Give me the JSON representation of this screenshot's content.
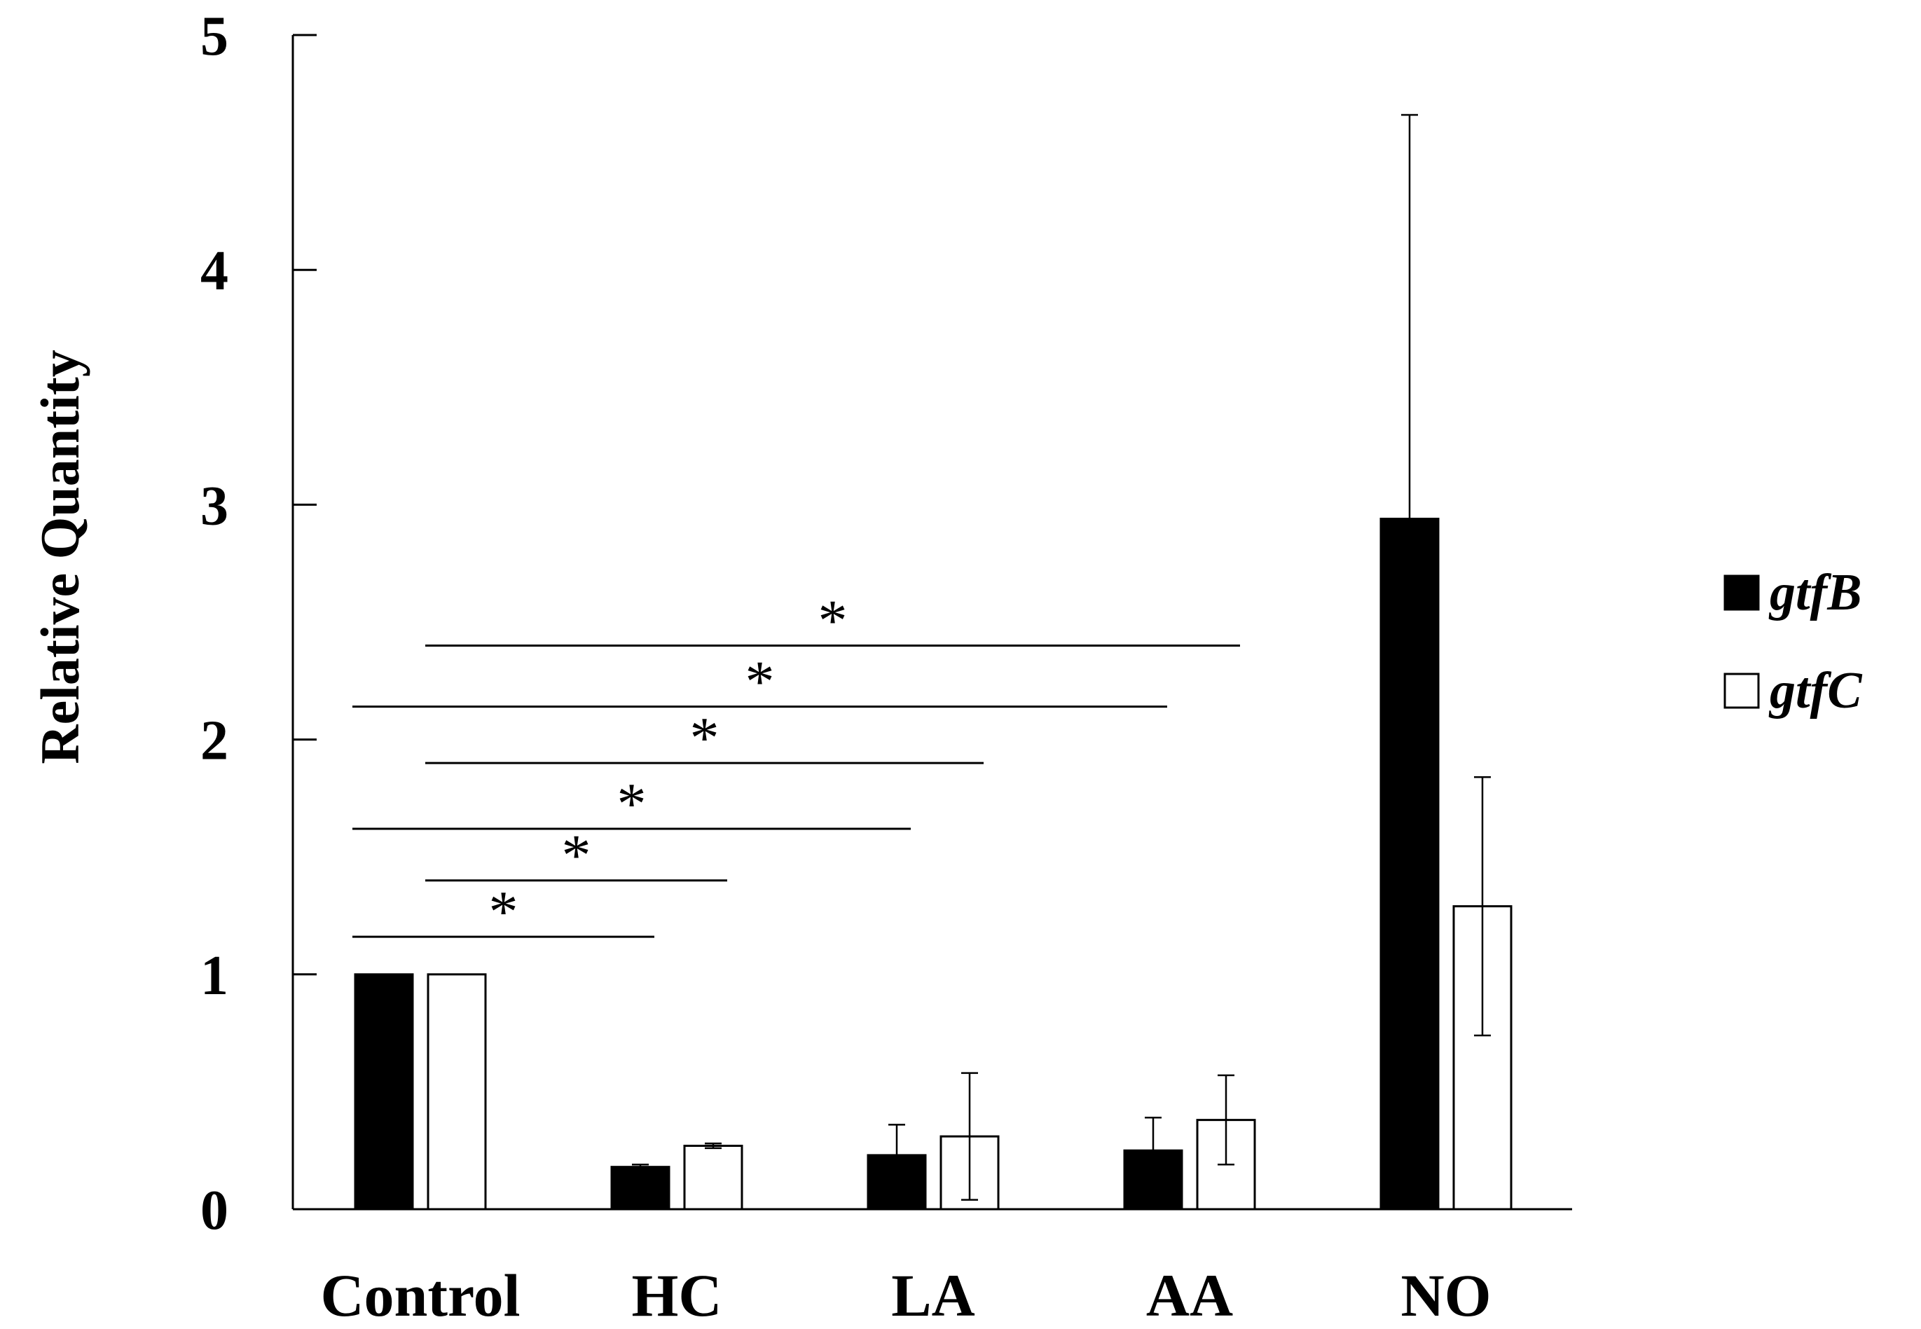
{
  "chart_data": {
    "type": "bar",
    "title": "",
    "xlabel": "",
    "ylabel": "Relative Quantity",
    "ylim": [
      0,
      5
    ],
    "yticks": [
      0,
      1,
      2,
      3,
      4,
      5
    ],
    "categories": [
      "Control",
      "HC",
      "LA",
      "AA",
      "NO"
    ],
    "series": [
      {
        "name": "gtfB",
        "color": "#000000",
        "values": [
          1.0,
          0.18,
          0.23,
          0.25,
          2.94
        ],
        "error": [
          0.0,
          0.01,
          0.13,
          0.14,
          1.72
        ]
      },
      {
        "name": "gtfC",
        "color": "#ffffff",
        "values": [
          1.0,
          0.27,
          0.31,
          0.38,
          1.29
        ],
        "error": [
          0.0,
          0.01,
          0.27,
          0.19,
          0.55
        ]
      }
    ],
    "legend_position": "right",
    "significance": [
      {
        "from": "Control (gtfB)",
        "to": "HC (gtfB)",
        "y": 1.16,
        "label": "*"
      },
      {
        "from": "Control (gtfC)",
        "to": "HC (gtfC)",
        "y": 1.4,
        "label": "*"
      },
      {
        "from": "Control (gtfB)",
        "to": "LA (gtfB)",
        "y": 1.62,
        "label": "*"
      },
      {
        "from": "Control (gtfC)",
        "to": "LA (gtfC)",
        "y": 1.9,
        "label": "*"
      },
      {
        "from": "Control (gtfB)",
        "to": "AA (gtfB)",
        "y": 2.14,
        "label": "*"
      },
      {
        "from": "Control (gtfC)",
        "to": "AA (gtfC)",
        "y": 2.4,
        "label": "*"
      }
    ]
  }
}
